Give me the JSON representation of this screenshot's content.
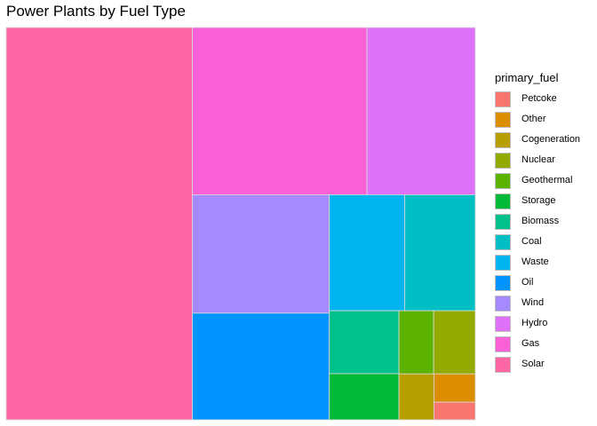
{
  "chart_data": {
    "type": "treemap",
    "title": "Power Plants by Fuel Type",
    "legend_title": "primary_fuel",
    "legend_position": "right",
    "categories": [
      "Solar",
      "Gas",
      "Hydro",
      "Wind",
      "Oil",
      "Waste",
      "Coal",
      "Biomass",
      "Storage",
      "Geothermal",
      "Nuclear",
      "Cogeneration",
      "Other",
      "Petcoke"
    ],
    "values": [
      2500,
      1000,
      620,
      555,
      500,
      300,
      280,
      150,
      110,
      75,
      90,
      55,
      40,
      25
    ],
    "legend_order": [
      "Petcoke",
      "Other",
      "Cogeneration",
      "Nuclear",
      "Geothermal",
      "Storage",
      "Biomass",
      "Coal",
      "Waste",
      "Oil",
      "Wind",
      "Hydro",
      "Gas",
      "Solar"
    ],
    "colors": {
      "Petcoke": "#F8766D",
      "Other": "#DB8E00",
      "Cogeneration": "#B79F00",
      "Nuclear": "#93AA00",
      "Geothermal": "#5BB300",
      "Storage": "#00BA38",
      "Biomass": "#00C08B",
      "Coal": "#00BFC4",
      "Waste": "#00B4F0",
      "Oil": "#0094FF",
      "Wind": "#A58AFF",
      "Hydro": "#DF70F8",
      "Gas": "#FB61D7",
      "Solar": "#FF67A4"
    }
  }
}
